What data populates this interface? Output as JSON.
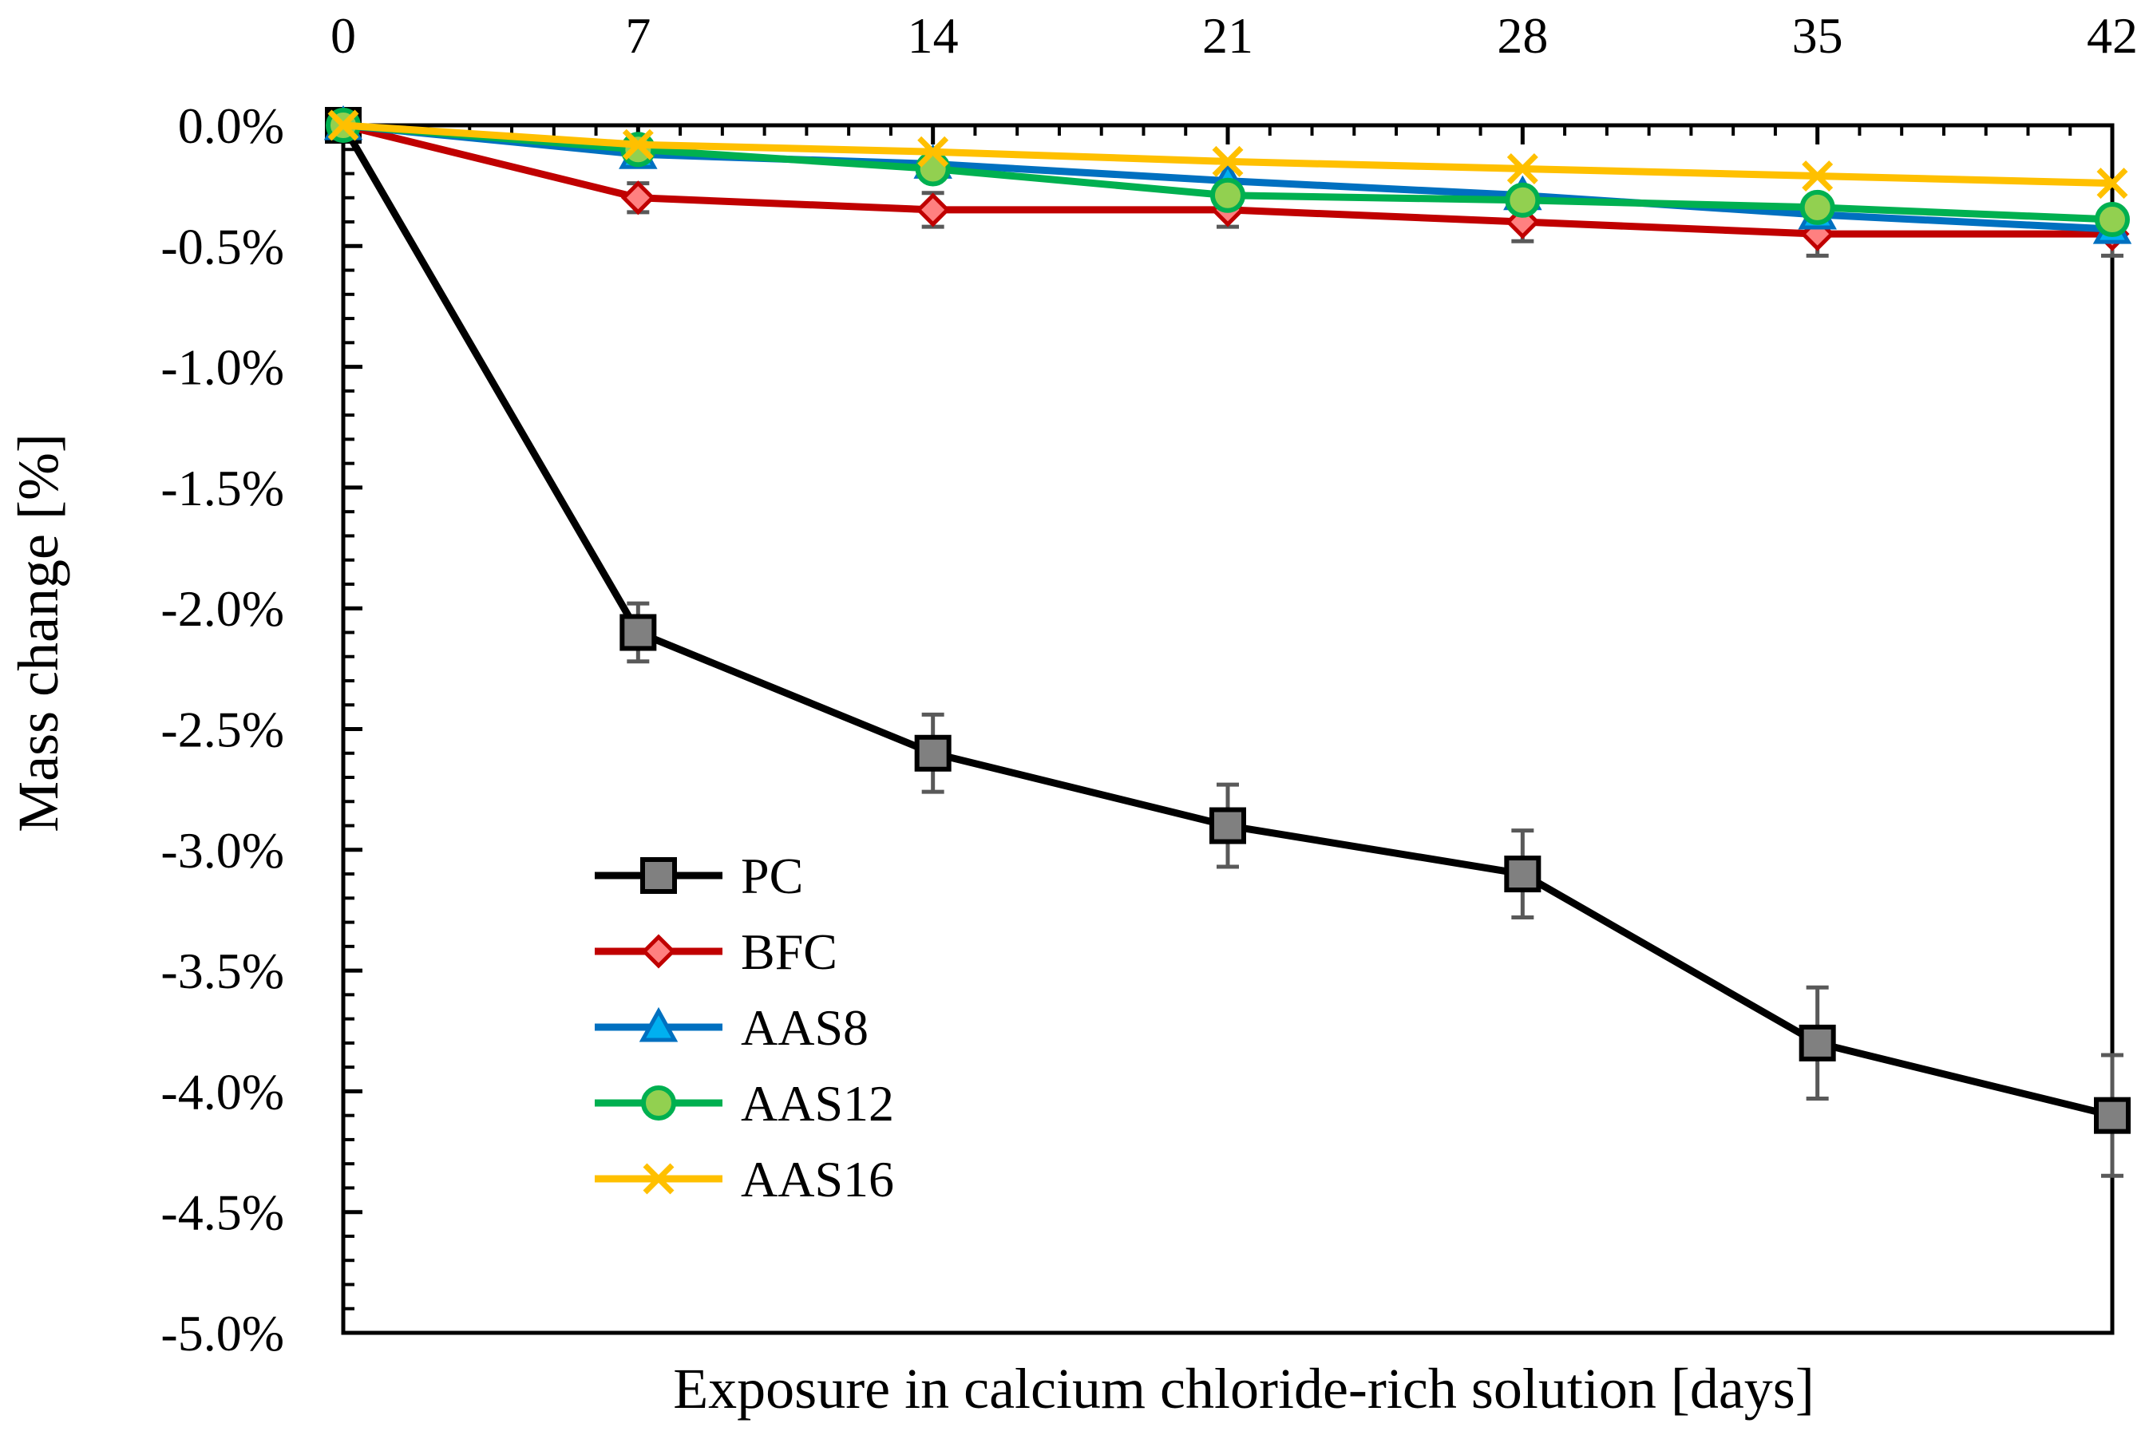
{
  "chart_data": {
    "type": "line",
    "title": "",
    "xlabel": "Exposure in calcium chloride-rich solution [days]",
    "ylabel": "Mass change [%]",
    "x": [
      0,
      7,
      14,
      21,
      28,
      35,
      42
    ],
    "xlim": [
      0,
      42
    ],
    "ylim": [
      -5.0,
      0.0
    ],
    "x_tick_labels": [
      "0",
      "7",
      "14",
      "21",
      "28",
      "35",
      "42"
    ],
    "x_tick_values": [
      0,
      7,
      14,
      21,
      28,
      35,
      42
    ],
    "y_tick_values": [
      0.0,
      -0.5,
      -1.0,
      -1.5,
      -2.0,
      -2.5,
      -3.0,
      -3.5,
      -4.0,
      -4.5,
      -5.0
    ],
    "y_tick_labels": [
      "0.0%",
      "-0.5%",
      "-1.0%",
      "-1.5%",
      "-2.0%",
      "-2.5%",
      "-3.0%",
      "-3.5%",
      "-4.0%",
      "-4.5%",
      "-5.0%"
    ],
    "x_axis_position": "top",
    "grid": false,
    "legend_position": "lower-left",
    "series": [
      {
        "name": "PC",
        "values": [
          0.0,
          -2.1,
          -2.6,
          -2.9,
          -3.1,
          -3.8,
          -4.1
        ],
        "error": [
          0.0,
          0.12,
          0.16,
          0.17,
          0.18,
          0.23,
          0.25
        ],
        "color": "#000000",
        "marker": "square",
        "marker_fill": "#808080",
        "marker_stroke": "#000000"
      },
      {
        "name": "BFC",
        "values": [
          0.0,
          -0.3,
          -0.35,
          -0.35,
          -0.4,
          -0.45,
          -0.45
        ],
        "error": [
          0.0,
          0.06,
          0.07,
          0.07,
          0.08,
          0.09,
          0.09
        ],
        "color": "#C00000",
        "marker": "diamond",
        "marker_fill": "#FF8080",
        "marker_stroke": "#C00000"
      },
      {
        "name": "AAS8",
        "values": [
          0.0,
          -0.12,
          -0.16,
          -0.23,
          -0.29,
          -0.37,
          -0.43
        ],
        "error": [
          0.0,
          0.0,
          0.0,
          0.0,
          0.0,
          0.0,
          0.0
        ],
        "color": "#0070C0",
        "marker": "triangle",
        "marker_fill": "#00B0F0",
        "marker_stroke": "#0070C0"
      },
      {
        "name": "AAS12",
        "values": [
          0.0,
          -0.1,
          -0.18,
          -0.29,
          -0.31,
          -0.34,
          -0.39
        ],
        "error": [
          0.0,
          0.0,
          0.0,
          0.0,
          0.0,
          0.0,
          0.0
        ],
        "color": "#00B050",
        "marker": "circle",
        "marker_fill": "#92D050",
        "marker_stroke": "#00B050"
      },
      {
        "name": "AAS16",
        "values": [
          0.0,
          -0.08,
          -0.11,
          -0.15,
          -0.18,
          -0.21,
          -0.24
        ],
        "error": [
          0.0,
          0.0,
          0.0,
          0.0,
          0.0,
          0.0,
          0.0
        ],
        "color": "#FFC000",
        "marker": "x",
        "marker_fill": "#FFC000",
        "marker_stroke": "#FFC000"
      }
    ],
    "error_bar_color": "#595959"
  }
}
